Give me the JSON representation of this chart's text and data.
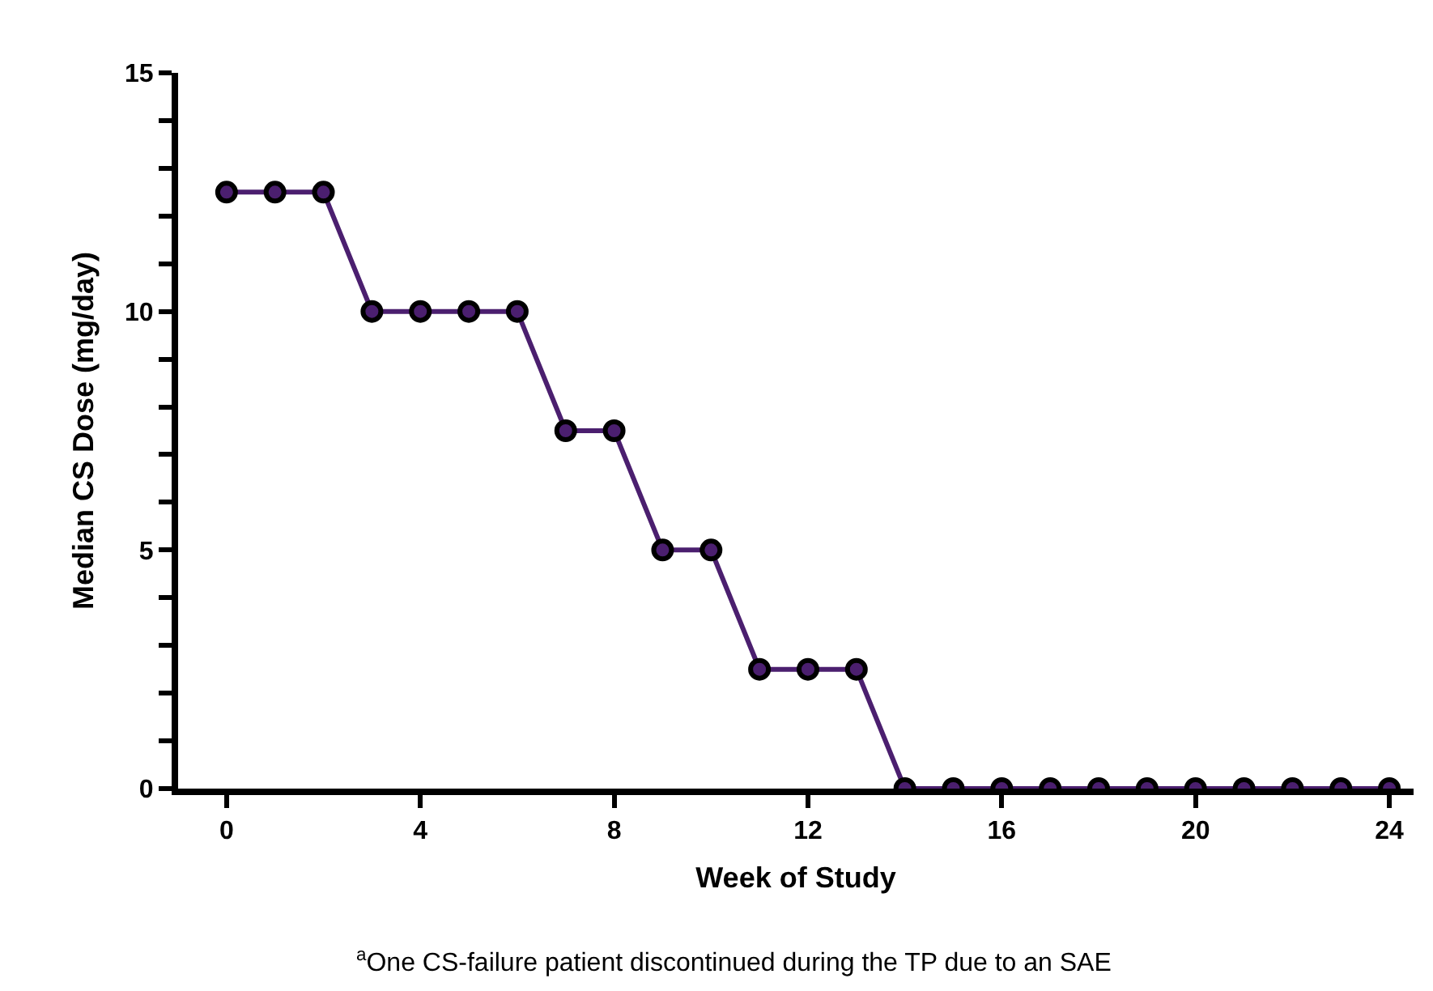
{
  "chart_data": {
    "type": "line",
    "xlabel": "Week of Study",
    "ylabel": "Median CS Dose (mg/day)",
    "x": [
      0,
      1,
      2,
      3,
      4,
      5,
      6,
      7,
      8,
      9,
      10,
      11,
      12,
      13,
      14,
      15,
      16,
      17,
      18,
      19,
      20,
      21,
      22,
      23,
      24
    ],
    "series": [
      {
        "color": "#4b1f6f",
        "values": [
          12.5,
          12.5,
          12.5,
          10,
          10,
          10,
          10,
          7.5,
          7.5,
          5,
          5,
          2.5,
          2.5,
          2.5,
          0,
          0,
          0,
          0,
          0,
          0,
          0,
          0,
          0,
          0,
          0
        ]
      }
    ],
    "xlim": [
      -1,
      24.5
    ],
    "xticks": [
      0,
      4,
      8,
      12,
      16,
      20,
      24
    ],
    "ylim": [
      0,
      15
    ],
    "yticks": [
      0,
      {
        "value": 1,
        "label": null
      },
      {
        "value": 2,
        "label": null
      },
      {
        "value": 3,
        "label": null
      },
      {
        "value": 4,
        "label": null
      },
      5,
      {
        "value": 6,
        "label": null
      },
      {
        "value": 7,
        "label": null
      },
      {
        "value": 8,
        "label": null
      },
      {
        "value": 9,
        "label": null
      },
      10,
      {
        "value": 11,
        "label": null
      },
      {
        "value": 12,
        "label": null
      },
      {
        "value": 13,
        "label": null
      },
      {
        "value": 14,
        "label": null
      },
      15
    ],
    "marker": "circle",
    "line_style": "solid",
    "annotations": [
      "$^{a}$One CS-failure patient discontinued during the TP due to an SAE"
    ]
  }
}
